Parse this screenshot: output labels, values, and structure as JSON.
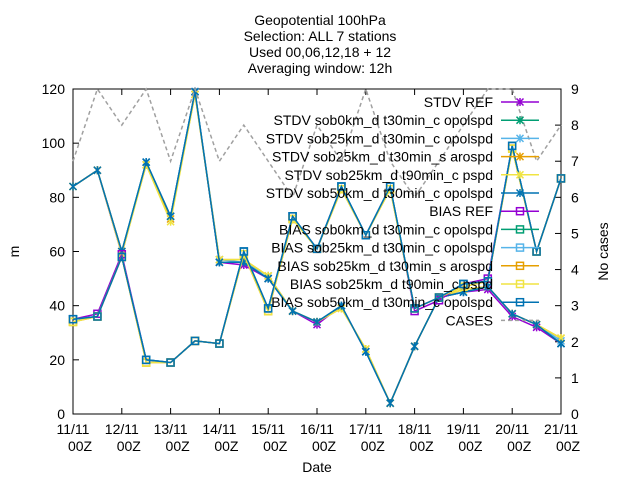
{
  "chart_data": {
    "type": "line",
    "title_lines": [
      "Geopotential 100hPa",
      "Selection: ALL      7 stations",
      "Used 00,06,12,18 + 12",
      "Averaging window: 12h"
    ],
    "xlabel": "Date",
    "ylabel": "m",
    "y2label": "No cases",
    "ylim": [
      0,
      120
    ],
    "y2lim": [
      0,
      9
    ],
    "yticks": [
      "0",
      "20",
      "40",
      "60",
      "80",
      "100",
      "120"
    ],
    "y2ticks": [
      "0",
      "1",
      "2",
      "3",
      "4",
      "5",
      "6",
      "7",
      "8",
      "9"
    ],
    "xticks": [
      {
        "top": "11/11",
        "bottom": "00Z"
      },
      {
        "top": "12/11",
        "bottom": "00Z"
      },
      {
        "top": "13/11",
        "bottom": "00Z"
      },
      {
        "top": "14/11",
        "bottom": "00Z"
      },
      {
        "top": "15/11",
        "bottom": "00Z"
      },
      {
        "top": "16/11",
        "bottom": "00Z"
      },
      {
        "top": "17/11",
        "bottom": "00Z"
      },
      {
        "top": "18/11",
        "bottom": "00Z"
      },
      {
        "top": "19/11",
        "bottom": "00Z"
      },
      {
        "top": "20/11",
        "bottom": "00Z"
      },
      {
        "top": "21/11",
        "bottom": "00Z"
      }
    ],
    "x_days": [
      0.0,
      0.5,
      1.0,
      1.5,
      2.0,
      2.5,
      3.0,
      3.5,
      4.0,
      4.5,
      5.0,
      5.5,
      6.0,
      6.5,
      7.0,
      7.5,
      8.0,
      8.5,
      9.0,
      9.5,
      10.0
    ],
    "legend_position": "top-right",
    "series": [
      {
        "name": "STDV REF",
        "color": "#9400d3",
        "marker": "x",
        "axis": "y1",
        "values": [
          84,
          90,
          59,
          93,
          73,
          119,
          56,
          55,
          50,
          38,
          33,
          40,
          23,
          4,
          25,
          43,
          45,
          46,
          36,
          32,
          26
        ]
      },
      {
        "name": "STDV sob0km_d t30min_c opolspd",
        "color": "#009e73",
        "marker": "x",
        "axis": "y1",
        "values": [
          84,
          90,
          60,
          93,
          73,
          119,
          56,
          56,
          50,
          38,
          34,
          40,
          23,
          4,
          25,
          43,
          45,
          47,
          37,
          33,
          26
        ]
      },
      {
        "name": "STDV sob25km_d t30min_c opolspd",
        "color": "#56b4e9",
        "marker": "x",
        "axis": "y1",
        "values": [
          84,
          90,
          60,
          93,
          73,
          119,
          57,
          56,
          51,
          38,
          34,
          40,
          23,
          4,
          25,
          43,
          45,
          47,
          37,
          33,
          27
        ]
      },
      {
        "name": "STDV sob25km_d t30min_s arospd",
        "color": "#e69f00",
        "marker": "x",
        "axis": "y1",
        "values": [
          84,
          90,
          60,
          92,
          72,
          118,
          57,
          57,
          51,
          38,
          34,
          39,
          24,
          4,
          25,
          43,
          46,
          47,
          37,
          33,
          28
        ]
      },
      {
        "name": "STDV sob25km_d t90min_c pspd",
        "color": "#f0e442",
        "marker": "x",
        "axis": "y1",
        "values": [
          84,
          90,
          59,
          92,
          71,
          118,
          57,
          57,
          51,
          38,
          34,
          39,
          24,
          4,
          25,
          43,
          46,
          47,
          37,
          33,
          28
        ]
      },
      {
        "name": "STDV sob50km_d t30min_c opolspd",
        "color": "#0072b2",
        "marker": "x",
        "axis": "y1",
        "values": [
          84,
          90,
          60,
          93,
          73,
          119,
          56,
          56,
          50,
          38,
          34,
          40,
          23,
          4,
          25,
          43,
          45,
          47,
          37,
          33,
          26
        ]
      },
      {
        "name": "BIAS REF",
        "color": "#9400d3",
        "marker": "square",
        "axis": "y1",
        "values": [
          35,
          37,
          59,
          20,
          19,
          27,
          26,
          60,
          39,
          73,
          61,
          84,
          66,
          84,
          38,
          42,
          48,
          50,
          99,
          60,
          87
        ]
      },
      {
        "name": "BIAS sob0km_d t30min_c opolspd",
        "color": "#009e73",
        "marker": "square",
        "axis": "y1",
        "values": [
          35,
          36,
          58,
          20,
          19,
          27,
          26,
          60,
          39,
          73,
          61,
          84,
          66,
          84,
          39,
          43,
          48,
          49,
          99,
          60,
          87
        ]
      },
      {
        "name": "BIAS sob25km_d t30min_c opolspd",
        "color": "#56b4e9",
        "marker": "square",
        "axis": "y1",
        "values": [
          35,
          36,
          58,
          20,
          19,
          27,
          26,
          60,
          39,
          73,
          61,
          84,
          66,
          84,
          39,
          43,
          48,
          49,
          99,
          60,
          87
        ]
      },
      {
        "name": "BIAS sob25km_d t30min_s arospd",
        "color": "#e69f00",
        "marker": "square",
        "axis": "y1",
        "values": [
          34,
          36,
          58,
          19,
          19,
          27,
          26,
          59,
          38,
          72,
          61,
          83,
          66,
          83,
          39,
          43,
          47,
          49,
          98,
          60,
          87
        ]
      },
      {
        "name": "BIAS sob25km_d t90min_c pspd",
        "color": "#f0e442",
        "marker": "square",
        "axis": "y1",
        "values": [
          34,
          36,
          58,
          19,
          19,
          27,
          26,
          59,
          38,
          72,
          61,
          83,
          66,
          83,
          39,
          43,
          47,
          49,
          98,
          60,
          87
        ]
      },
      {
        "name": "BIAS sob50km_d t30min_c opolspd",
        "color": "#0072b2",
        "marker": "square",
        "axis": "y1",
        "values": [
          35,
          36,
          58,
          20,
          19,
          27,
          26,
          60,
          39,
          73,
          61,
          84,
          66,
          84,
          39,
          43,
          48,
          49,
          99,
          60,
          87
        ]
      },
      {
        "name": "CASES",
        "color": "#a0a0a0",
        "marker": "none",
        "dashed": true,
        "axis": "y2",
        "values": [
          7,
          9,
          8,
          9,
          7,
          9,
          7,
          8,
          7,
          6,
          8,
          7,
          9,
          7,
          6,
          7,
          8,
          9,
          9,
          7,
          8
        ]
      }
    ]
  }
}
